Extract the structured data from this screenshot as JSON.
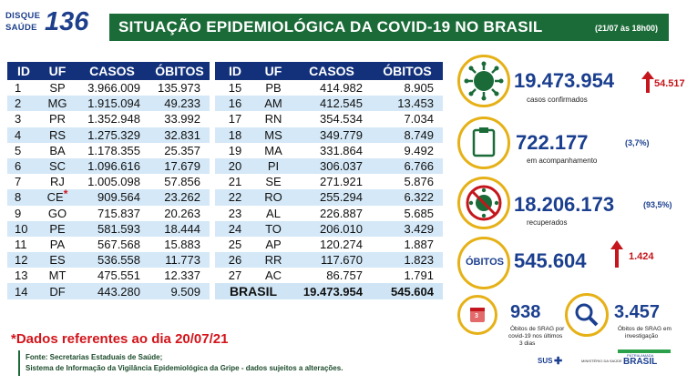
{
  "logo": {
    "line1": "DISQUE",
    "line2": "SAÚDE",
    "number": "136"
  },
  "header": {
    "title": "SITUAÇÃO EPIDEMIOLÓGICA DA COVID-19 NO BRASIL",
    "date": "(21/07 às 18h00)"
  },
  "table_left": {
    "headers": [
      "ID",
      "UF",
      "CASOS",
      "ÓBITOS"
    ],
    "rows": [
      [
        "1",
        "SP",
        "3.966.009",
        "135.973"
      ],
      [
        "2",
        "MG",
        "1.915.094",
        "49.233"
      ],
      [
        "3",
        "PR",
        "1.352.948",
        "33.992"
      ],
      [
        "4",
        "RS",
        "1.275.329",
        "32.831"
      ],
      [
        "5",
        "BA",
        "1.178.355",
        "25.357"
      ],
      [
        "6",
        "SC",
        "1.096.616",
        "17.679"
      ],
      [
        "7",
        "RJ",
        "1.005.098",
        "57.856"
      ],
      [
        "8",
        "CE",
        "909.564",
        "23.262"
      ],
      [
        "9",
        "GO",
        "715.837",
        "20.263"
      ],
      [
        "10",
        "PE",
        "581.593",
        "18.444"
      ],
      [
        "11",
        "PA",
        "567.568",
        "15.883"
      ],
      [
        "12",
        "ES",
        "536.558",
        "11.773"
      ],
      [
        "13",
        "MT",
        "475.551",
        "12.337"
      ],
      [
        "14",
        "DF",
        "443.280",
        "9.509"
      ]
    ],
    "asterisk": "*"
  },
  "table_right": {
    "headers": [
      "ID",
      "UF",
      "CASOS",
      "ÓBITOS"
    ],
    "rows": [
      [
        "15",
        "PB",
        "414.982",
        "8.905"
      ],
      [
        "16",
        "AM",
        "412.545",
        "13.453"
      ],
      [
        "17",
        "RN",
        "354.534",
        "7.034"
      ],
      [
        "18",
        "MS",
        "349.779",
        "8.749"
      ],
      [
        "19",
        "MA",
        "331.864",
        "9.492"
      ],
      [
        "20",
        "PI",
        "306.037",
        "6.766"
      ],
      [
        "21",
        "SE",
        "271.921",
        "5.876"
      ],
      [
        "22",
        "RO",
        "255.294",
        "6.322"
      ],
      [
        "23",
        "AL",
        "226.887",
        "5.685"
      ],
      [
        "24",
        "TO",
        "206.010",
        "3.429"
      ],
      [
        "25",
        "AP",
        "120.274",
        "1.887"
      ],
      [
        "26",
        "RR",
        "117.670",
        "1.823"
      ],
      [
        "27",
        "AC",
        "86.757",
        "1.791"
      ]
    ],
    "total": {
      "label": "BRASIL",
      "casos": "19.473.954",
      "obitos": "545.604"
    }
  },
  "stats": {
    "confirmed": {
      "value": "19.473.954",
      "delta": "54.517",
      "label": "casos confirmados"
    },
    "monitoring": {
      "value": "722.177",
      "pct": "(3,7%)",
      "label": "em acompanhamento"
    },
    "recovered": {
      "value": "18.206.173",
      "pct": "(93,5%)",
      "label": "recuperados"
    },
    "deaths": {
      "icon_label": "ÓBITOS",
      "value": "545.604",
      "delta": "1.424"
    },
    "srag_recent": {
      "value": "938",
      "label1": "Óbitos de SRAG por",
      "label2": "covid-19 nos últimos",
      "label3": "3 dias",
      "badge": "3"
    },
    "srag_investigation": {
      "value": "3.457",
      "label1": "Óbitos de SRAG em",
      "label2": "investigação"
    }
  },
  "footer": {
    "note": "*Dados referentes ao dia 20/07/21",
    "source1": "Fonte: Secretarias Estaduais de Saúde;",
    "source2": "Sistema de Informação da Vigilância Epidemiológica da Gripe - dados sujeitos a alterações.",
    "sus": "SUS",
    "ministry": "MINISTÉRIO DA SAÚDE",
    "gov_top": "PÁTRIA AMADA",
    "gov": "BRASIL"
  },
  "colors": {
    "header_green": "#1b6b38",
    "table_header": "#12317a",
    "row_alt": "#d4e8f7",
    "accent_yellow": "#e6b117",
    "alert_red": "#c4161c",
    "number_blue": "#1b3f8f"
  }
}
